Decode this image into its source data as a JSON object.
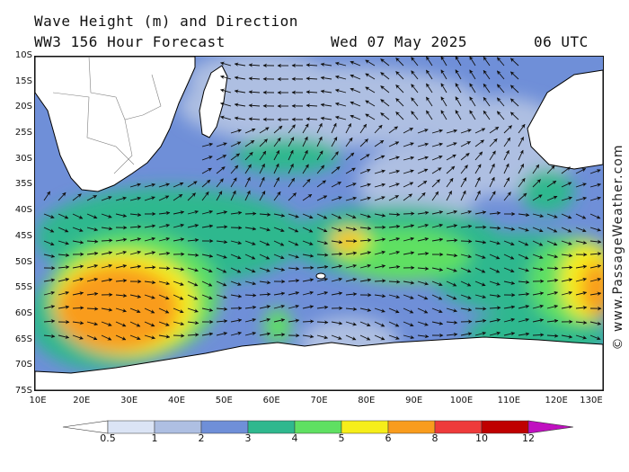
{
  "title": {
    "line1": "Wave Height (m) and Direction",
    "model": "WW3 156 Hour Forecast",
    "date": "Wed 07 May 2025",
    "time": "06 UTC"
  },
  "credit": "© www.PassageWeather.com",
  "map": {
    "lat_labels": [
      "10S",
      "15S",
      "20S",
      "25S",
      "30S",
      "35S",
      "40S",
      "45S",
      "50S",
      "55S",
      "60S",
      "65S",
      "70S",
      "75S"
    ],
    "lon_labels": [
      "10E",
      "20E",
      "30E",
      "40E",
      "50E",
      "60E",
      "70E",
      "80E",
      "90E",
      "100E",
      "110E",
      "120E",
      "130E"
    ],
    "lat_range": [
      -10,
      -75
    ],
    "lon_range": [
      10,
      130
    ],
    "prevailing_direction": "westerly (arrows pointing east)"
  },
  "legend": {
    "labels": [
      "0.5",
      "1",
      "2",
      "3",
      "4",
      "5",
      "6",
      "8",
      "10",
      "12"
    ],
    "colors": [
      "#dbe4f5",
      "#aebfe2",
      "#6f8fd8",
      "#2fb88e",
      "#5fe062",
      "#f6ee1a",
      "#f99c1d",
      "#ee3b3b",
      "#bf0000",
      "#c010c0"
    ],
    "unit": "m"
  },
  "colors": {
    "land": "#ffffff",
    "coast": "#000000",
    "border": "#7f7f7f"
  }
}
